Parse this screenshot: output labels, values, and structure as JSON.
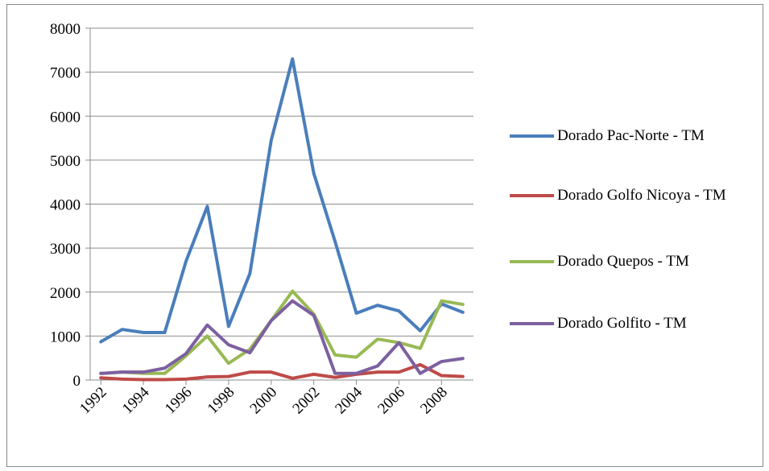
{
  "chart_data": {
    "type": "line",
    "x": [
      1992,
      1993,
      1994,
      1995,
      1996,
      1997,
      1998,
      1999,
      2000,
      2001,
      2002,
      2003,
      2004,
      2005,
      2006,
      2007,
      2008,
      2009
    ],
    "xlim": [
      1991.5,
      2009.5
    ],
    "xticks": [
      1992,
      1994,
      1996,
      1998,
      2000,
      2002,
      2004,
      2006,
      2008
    ],
    "ylim": [
      0,
      8000
    ],
    "yticks": [
      0,
      1000,
      2000,
      3000,
      4000,
      5000,
      6000,
      7000,
      8000
    ],
    "grid": true,
    "legend": "right",
    "series": [
      {
        "name": "Dorado Pac-Norte - TM",
        "color": "#4a7ebb",
        "values": [
          870,
          1150,
          1080,
          1080,
          2700,
          3950,
          1220,
          2420,
          5450,
          7300,
          4700,
          3150,
          1520,
          1700,
          1570,
          1120,
          1730,
          1540
        ]
      },
      {
        "name": "Dorado Golfo Nicoya - TM",
        "color": "#be4b48",
        "values": [
          50,
          20,
          10,
          10,
          20,
          70,
          80,
          180,
          180,
          40,
          130,
          60,
          130,
          180,
          180,
          350,
          100,
          80
        ]
      },
      {
        "name": "Dorado Quepos - TM",
        "color": "#98b954",
        "values": [
          150,
          180,
          150,
          150,
          550,
          1000,
          380,
          700,
          1350,
          2020,
          1500,
          570,
          520,
          930,
          850,
          720,
          1800,
          1720
        ]
      },
      {
        "name": "Dorado Golfito - TM",
        "color": "#7d60a0",
        "values": [
          150,
          180,
          180,
          270,
          600,
          1250,
          800,
          620,
          1350,
          1800,
          1470,
          150,
          150,
          320,
          850,
          150,
          420,
          490
        ]
      }
    ]
  }
}
